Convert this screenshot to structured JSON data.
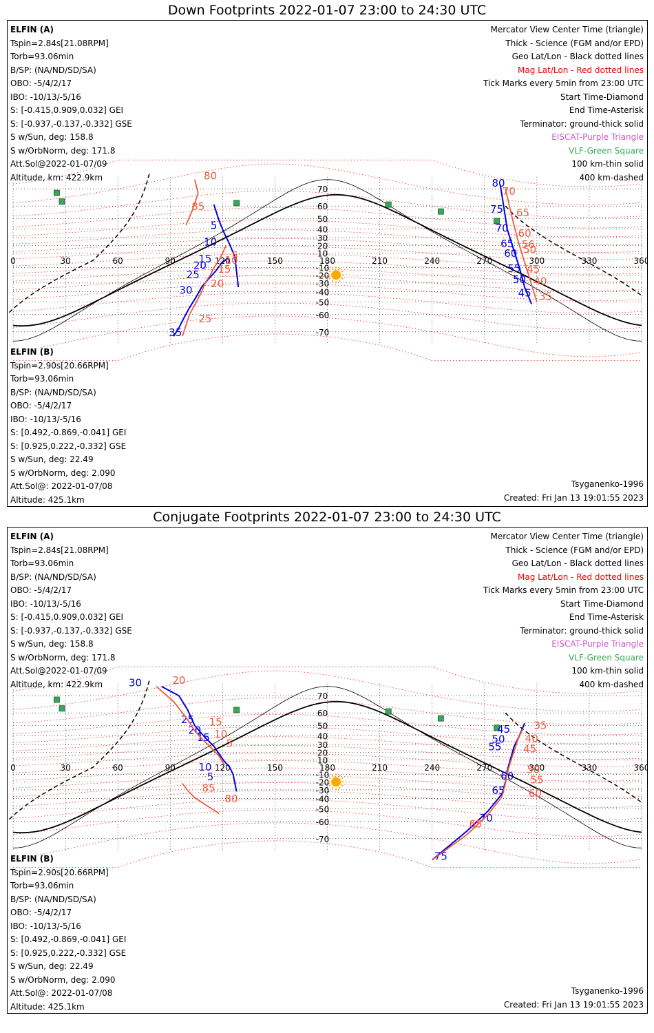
{
  "colors": {
    "sat_a": "#0000dd",
    "sat_b": "#f05a3a",
    "geo_grid": "#000000",
    "mag_grid": "#ee0000",
    "terminator": "#000000",
    "eiscat": "#cc55cc",
    "vlf": "#33aa55",
    "sun": "#ffaa00"
  },
  "legend": {
    "center": "Mercator View Center Time (triangle)",
    "thick": "Thick - Science (FGM and/or EPD)",
    "geo": "Geo Lat/Lon - Black dotted lines",
    "mag": "Mag Lat/Lon - Red dotted lines",
    "ticks": "Tick Marks every 5min from 23:00 UTC",
    "start": "Start Time-Diamond",
    "end": "End Time-Asterisk",
    "terminator": "Terminator: ground-thick solid",
    "eiscat": "EISCAT-Purple Triangle",
    "vlf": "VLF-Green Square",
    "km100": "100 km-thin solid",
    "km400": "400 km-dashed"
  },
  "sat_a": {
    "name": "ELFIN (A)",
    "tspin": "Tspin=2.84s[21.08RPM]",
    "torb": "Torb=93.06min",
    "bsp": "B/SP: (NA/ND/SD/SA)",
    "obo": "OBO: -5/4/2/17",
    "ibo": "IBO: -10/13/-5/16",
    "s_gei": "S: [-0.415,0.909,0.032] GEI",
    "s_gse": "S: [-0.937,-0.137,-0.332] GSE",
    "s_sun": "S w/Sun, deg: 158.8",
    "s_orb": "S w/OrbNorm, deg: 171.8",
    "att": "Att.Sol@2022-01-07/09",
    "alt": "Altitude, km: 422.9km"
  },
  "sat_b": {
    "name": "ELFIN (B)",
    "tspin": "Tspin=2.90s[20.66RPM]",
    "torb": "Torb=93.06min",
    "bsp": "B/SP: (NA/ND/SD/SA)",
    "obo": "OBO: -5/4/2/17",
    "ibo": "IBO: -10/13/-5/16",
    "s_gei": "S: [0.492,-0.869,-0.041] GEI",
    "s_gse": "S: [0.925,0.222,-0.332] GSE",
    "s_sun": "S w/Sun, deg: 22.49",
    "s_orb": "S w/OrbNorm, deg: 2.090",
    "att": "Att.Sol@: 2022-01-07/08",
    "alt": "Altitude: 425.1km"
  },
  "model": "Tsyganenko-1996",
  "created": "Created: Fri Jan 13 19:01:55 2023",
  "panels": [
    {
      "title": "Down Footprints 2022-01-07 23:00 to 24:30 UTC"
    },
    {
      "title": "Conjugate Footprints 2022-01-07 23:00 to 24:30 UTC"
    }
  ],
  "chart_data": [
    {
      "type": "map",
      "title": "Down Footprints 2022-01-07 23:00 to 24:30 UTC",
      "xlim": [
        0,
        360
      ],
      "ylim": [
        -80,
        80
      ],
      "x_ticks": [
        "0",
        "30",
        "60",
        "90",
        "120",
        "150",
        "180",
        "210",
        "240",
        "270",
        "300",
        "330",
        "360"
      ],
      "y_ticks": [
        "70",
        "60",
        "50",
        "40",
        "30",
        "20",
        "10",
        "-10",
        "-20",
        "-30",
        "-40",
        "-50",
        "-60",
        "-70"
      ],
      "sun": {
        "lon": 185,
        "lat": -20
      },
      "vlf_stations": [
        [
          25,
          68
        ],
        [
          28,
          63
        ],
        [
          128,
          62
        ],
        [
          215,
          61
        ],
        [
          245,
          56
        ],
        [
          277,
          48
        ]
      ],
      "series": [
        {
          "name": "ELFIN (A)",
          "color": "#0000dd",
          "segments": [
            {
              "lon": [
                115,
                118,
                121,
                124,
                127,
                128.5,
                129
              ],
              "lat": [
                61,
                48,
                35,
                22,
                5,
                -25,
                -35
              ]
            },
            {
              "lon": [
                123,
                119,
                116,
                112,
                108,
                105,
                101,
                98,
                95,
                92
              ],
              "lat": [
                3,
                -5,
                -15,
                -25,
                -35,
                -45,
                -55,
                -62,
                -68,
                -72
              ]
            },
            {
              "lon": [
                279,
                281,
                283,
                286,
                290,
                293,
                297
              ],
              "lat": [
                72,
                60,
                40,
                20,
                -10,
                -35,
                -52
              ]
            }
          ],
          "ticks": [
            [
              "5",
              115,
              40
            ],
            [
              "10",
              113,
              20
            ],
            [
              "15",
              110,
              -3
            ],
            [
              "20",
              107,
              -12
            ],
            [
              "25",
              103,
              -24
            ],
            [
              "30",
              99,
              -42
            ],
            [
              "35",
              93,
              -72
            ],
            [
              "80",
              278,
              71
            ],
            [
              "75",
              277,
              55
            ],
            [
              "70",
              280,
              37
            ],
            [
              "65",
              283,
              18
            ],
            [
              "60",
              285,
              5
            ],
            [
              "55",
              287,
              -16
            ],
            [
              "50",
              290,
              -30
            ],
            [
              "45",
              293,
              -45
            ]
          ]
        },
        {
          "name": "ELFIN (B)",
          "color": "#f05a3a",
          "segments": [
            {
              "lon": [
                104,
                106,
                103,
                99
              ],
              "lat": [
                74,
                68,
                58,
                44
              ]
            },
            {
              "lon": [
                122,
                120,
                118,
                115,
                113,
                110,
                108,
                105,
                101,
                97
              ],
              "lat": [
                20,
                10,
                0,
                -10,
                -20,
                -30,
                -40,
                -50,
                -60,
                -72
              ]
            },
            {
              "lon": [
                282,
                286,
                289,
                292,
                296,
                300
              ],
              "lat": [
                70,
                50,
                28,
                5,
                -25,
                -50
              ]
            }
          ],
          "ticks": [
            [
              "80",
              113,
              74
            ],
            [
              "85",
              106,
              57
            ],
            [
              "5",
              127,
              2
            ],
            [
              "10",
              125,
              -5
            ],
            [
              "15",
              121,
              -17
            ],
            [
              "20",
              117,
              -35
            ],
            [
              "25",
              110,
              -65
            ],
            [
              "70",
              284,
              67
            ],
            [
              "65",
              292,
              52
            ],
            [
              "60",
              293,
              31
            ],
            [
              "56",
              295,
              17
            ],
            [
              "50",
              296,
              10
            ],
            [
              "45",
              298,
              -17
            ],
            [
              "40",
              302,
              -32
            ],
            [
              "35",
              305,
              -48
            ]
          ]
        }
      ]
    },
    {
      "type": "map",
      "title": "Conjugate Footprints 2022-01-07 23:00 to 24:30 UTC",
      "xlim": [
        0,
        360
      ],
      "ylim": [
        -80,
        80
      ],
      "x_ticks": [
        "0",
        "30",
        "60",
        "90",
        "120",
        "150",
        "180",
        "210",
        "240",
        "270",
        "300",
        "330",
        "360"
      ],
      "y_ticks": [
        "70",
        "60",
        "50",
        "40",
        "30",
        "20",
        "10",
        "-10",
        "-20",
        "-30",
        "-40",
        "-50",
        "-60",
        "-70"
      ],
      "sun": {
        "lon": 185,
        "lat": -20
      },
      "vlf_stations": [
        [
          25,
          68
        ],
        [
          28,
          63
        ],
        [
          128,
          62
        ],
        [
          215,
          61
        ],
        [
          245,
          56
        ],
        [
          277,
          48
        ]
      ],
      "series": [
        {
          "name": "ELFIN (A)",
          "color": "#0000dd",
          "segments": [
            {
              "lon": [
                85,
                95,
                100,
                104,
                110,
                115,
                118,
                121,
                124,
                126,
                128
              ],
              "lat": [
                74,
                70,
                62,
                50,
                38,
                28,
                18,
                8,
                0,
                -10,
                -32
              ]
            },
            {
              "lon": [
                293,
                290,
                287,
                285,
                283,
                282,
                280,
                272,
                260,
                240
              ],
              "lat": [
                52,
                40,
                28,
                12,
                -5,
                -20,
                -35,
                -52,
                -66,
                -78
              ]
            }
          ],
          "ticks": [
            [
              "30",
              70,
              74
            ],
            [
              "25",
              100,
              52
            ],
            [
              "20",
              104,
              42
            ],
            [
              "15",
              109,
              34
            ],
            [
              "10",
              110,
              -5
            ],
            [
              "5",
              113,
              -18
            ],
            [
              "45",
              281,
              43
            ],
            [
              "50",
              278,
              32
            ],
            [
              "55",
              276,
              23
            ],
            [
              "60",
              283,
              -17
            ],
            [
              "65",
              278,
              -35
            ],
            [
              "70",
              271,
              -60
            ],
            [
              "75",
              245,
              -78
            ]
          ]
        },
        {
          "name": "ELFIN (B)",
          "color": "#f05a3a",
          "segments": [
            {
              "lon": [
                82,
                92,
                100,
                104,
                109,
                114,
                118,
                121
              ],
              "lat": [
                74,
                67,
                55,
                45,
                35,
                25,
                15,
                3
              ]
            },
            {
              "lon": [
                97,
                100,
                104,
                110,
                118
              ],
              "lat": [
                -22,
                -31,
                -39,
                -46,
                -54
              ]
            },
            {
              "lon": [
                292,
                289,
                287,
                285,
                283,
                282,
                280,
                272,
                260,
                240
              ],
              "lat": [
                47,
                35,
                22,
                8,
                -8,
                -22,
                -38,
                -55,
                -68,
                -78
              ]
            }
          ],
          "ticks": [
            [
              "20",
              95,
              75
            ],
            [
              "15",
              116,
              50
            ],
            [
              "10",
              119,
              38
            ],
            [
              "5",
              124,
              27
            ],
            [
              "85",
              112,
              -32
            ],
            [
              "80",
              125,
              -44
            ],
            [
              "35",
              302,
              47
            ],
            [
              "40",
              297,
              33
            ],
            [
              "45",
              296,
              20
            ],
            [
              "50",
              298,
              -8
            ],
            [
              "55",
              300,
              -22
            ],
            [
              "60",
              299,
              -38
            ],
            [
              "65",
              265,
              -64
            ]
          ]
        }
      ]
    }
  ]
}
